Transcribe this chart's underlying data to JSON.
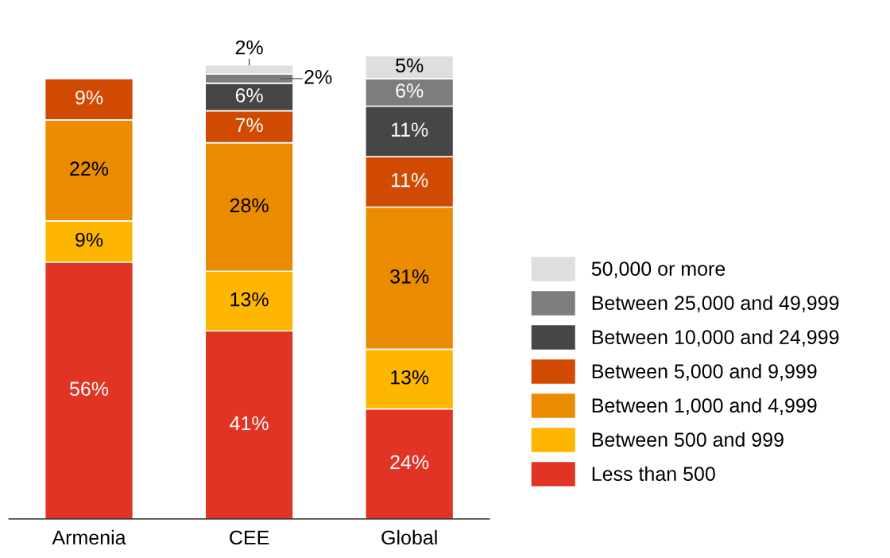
{
  "chart_data": {
    "type": "bar",
    "stacked": true,
    "legend": "right",
    "grid": false,
    "categories": [
      "Armenia",
      "CEE",
      "Global"
    ],
    "series": [
      {
        "name": "Less than 500",
        "color": "#e03424",
        "values": [
          56,
          41,
          24
        ],
        "value_labels": [
          "56%",
          "41%",
          "24%"
        ]
      },
      {
        "name": "Between 500 and 999",
        "color": "#ffb600",
        "values": [
          9,
          13,
          13
        ],
        "value_labels": [
          "9%",
          "13%",
          "13%"
        ]
      },
      {
        "name": "Between 1,000 and 4,999",
        "color": "#eb8c00",
        "values": [
          22,
          28,
          31
        ],
        "value_labels": [
          "22%",
          "28%",
          "31%"
        ]
      },
      {
        "name": "Between 5,000 and 9,999",
        "color": "#d04a02",
        "values": [
          9,
          7,
          11
        ],
        "value_labels": [
          "9%",
          "7%",
          "11%"
        ]
      },
      {
        "name": "Between 10,000 and 24,999",
        "color": "#464646",
        "values": [
          null,
          6,
          11
        ],
        "value_labels": [
          null,
          "6%",
          "11%"
        ]
      },
      {
        "name": "Between 25,000 and 49,999",
        "color": "#7d7d7d",
        "values": [
          null,
          2,
          6
        ],
        "value_labels": [
          null,
          "2%",
          "6%"
        ]
      },
      {
        "name": "50,000 or more",
        "color": "#dedede",
        "values": [
          null,
          2,
          5
        ],
        "value_labels": [
          null,
          "2%",
          "5%"
        ]
      }
    ]
  }
}
